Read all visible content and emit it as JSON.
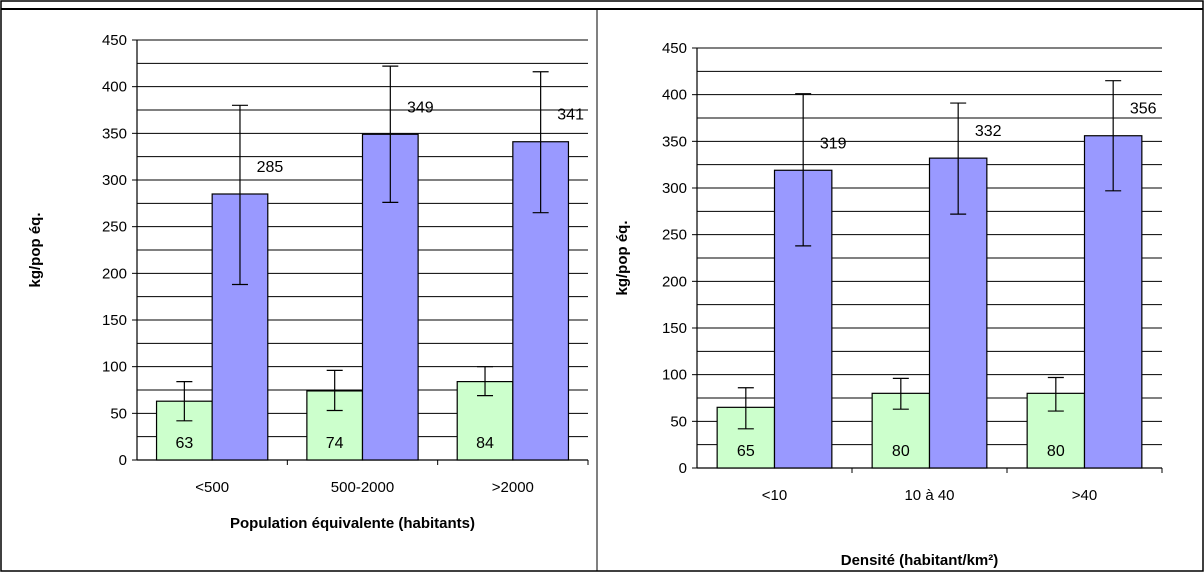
{
  "chart_data": [
    {
      "type": "bar",
      "title": "",
      "categories": [
        "<500",
        "500-2000",
        ">2000"
      ],
      "series": [
        {
          "values": [
            63,
            74,
            84
          ],
          "errors": [
            [
              42,
              84
            ],
            [
              53,
              96
            ],
            [
              69,
              100
            ]
          ],
          "color": "#ccffcc"
        },
        {
          "values": [
            285,
            349,
            341
          ],
          "errors": [
            [
              188,
              380
            ],
            [
              276,
              422
            ],
            [
              265,
              416
            ]
          ],
          "color": "#9999ff"
        }
      ],
      "xlabel": "Population équivalente (habitants)",
      "ylabel": "kg/pop éq.",
      "ylim": [
        0,
        450
      ],
      "yticks": [
        "0",
        "50",
        "100",
        "150",
        "200",
        "250",
        "300",
        "350",
        "400",
        "450"
      ],
      "grid": true
    },
    {
      "type": "bar",
      "title": "",
      "categories": [
        "<10",
        "10 à 40",
        ">40"
      ],
      "series": [
        {
          "values": [
            65,
            80,
            80
          ],
          "errors": [
            [
              42,
              86
            ],
            [
              63,
              96
            ],
            [
              61,
              97
            ]
          ],
          "color": "#ccffcc"
        },
        {
          "values": [
            319,
            332,
            356
          ],
          "errors": [
            [
              238,
              401
            ],
            [
              272,
              391
            ],
            [
              297,
              415
            ]
          ],
          "color": "#9999ff"
        }
      ],
      "xlabel": "Densité (habitant/km²)",
      "ylabel": "kg/pop éq.",
      "ylim": [
        0,
        450
      ],
      "yticks": [
        "0",
        "50",
        "100",
        "150",
        "200",
        "250",
        "300",
        "350",
        "400",
        "450"
      ],
      "grid": true
    }
  ]
}
